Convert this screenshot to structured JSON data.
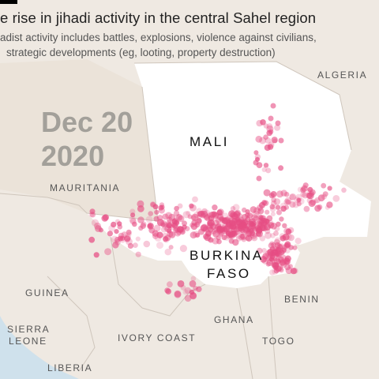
{
  "header": {
    "title": "e rise in jihadi activity in the central Sahel region",
    "subtitle_line1": "adist activity includes battles, explosions, violence against civilians,",
    "subtitle_line2": "strategic developments (eg, looting, property destruction)"
  },
  "timestamp": {
    "line1": "Dec 20",
    "line2": "2020"
  },
  "countries": {
    "mali": "MALI",
    "burkina_line1": "BURKINA",
    "burkina_line2": "FASO",
    "algeria": "ALGERIA",
    "mauritania": "MAURITANIA",
    "guinea": "GUINEA",
    "sierra_line1": "SIERRA",
    "sierra_line2": "LEONE",
    "ivory_coast": "IVORY COAST",
    "ghana": "GHANA",
    "togo": "TOGO",
    "benin": "BENIN",
    "liberia": "LIBERIA"
  },
  "colors": {
    "land": "#efe9e2",
    "highlight_land": "#ffffff",
    "ocean": "#cfe1ec",
    "border": "#cfc6bc",
    "event_dot": "#e64d83"
  }
}
